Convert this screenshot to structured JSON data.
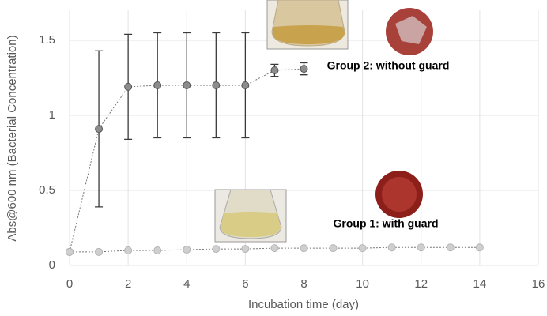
{
  "chart_data": {
    "type": "line",
    "xlabel": "Incubation time (day)",
    "ylabel": "Abs@600 nm (Bacterial Concentration)",
    "xlim": [
      0,
      16
    ],
    "xticks": [
      0,
      2,
      4,
      6,
      8,
      10,
      12,
      14,
      16
    ],
    "ylim": [
      0,
      1.7
    ],
    "yticks": [
      0,
      0.5,
      1,
      1.5
    ],
    "grid": true,
    "series": [
      {
        "name": "Group 2: without guard",
        "color": "#8c8c8c",
        "x": [
          0,
          1,
          2,
          3,
          4,
          5,
          6,
          7,
          8
        ],
        "values": [
          0.09,
          0.91,
          1.19,
          1.2,
          1.2,
          1.2,
          1.2,
          1.3,
          1.31
        ],
        "errors": [
          null,
          0.52,
          0.35,
          0.35,
          0.35,
          0.35,
          0.35,
          0.04,
          0.04
        ]
      },
      {
        "name": "Group 1: with guard",
        "color": "#cfcfcf",
        "x": [
          0,
          1,
          2,
          3,
          4,
          5,
          6,
          7,
          8,
          9,
          10,
          11,
          12,
          13,
          14
        ],
        "values": [
          0.09,
          0.09,
          0.1,
          0.1,
          0.105,
          0.11,
          0.11,
          0.115,
          0.115,
          0.115,
          0.115,
          0.12,
          0.12,
          0.12,
          0.12
        ]
      }
    ]
  }
}
